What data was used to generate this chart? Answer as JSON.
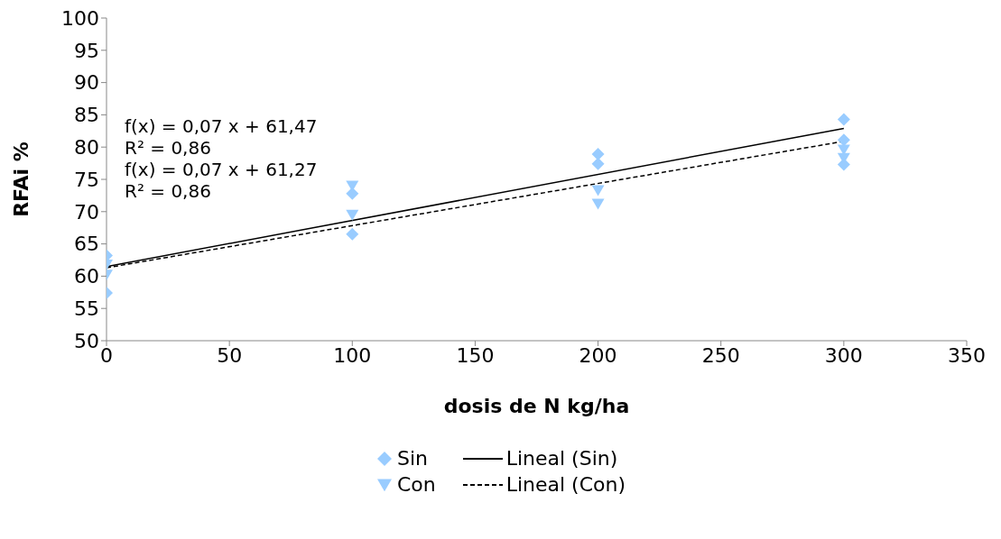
{
  "chart_data": {
    "type": "scatter",
    "xlabel": "dosis de N kg/ha",
    "ylabel": "RFAi %",
    "xlim": [
      0,
      350
    ],
    "xticks": [
      0,
      50,
      100,
      150,
      200,
      250,
      300,
      350
    ],
    "ylim": [
      50,
      100
    ],
    "yticks": [
      50,
      55,
      60,
      65,
      70,
      75,
      80,
      85,
      90,
      95,
      100
    ],
    "grid": false,
    "legend": "bottom",
    "series": [
      {
        "name": "Sin",
        "type": "scatter",
        "marker": "diamond",
        "color": "#99ccff",
        "x": [
          0,
          0,
          100,
          100,
          200,
          200,
          300,
          300,
          300
        ],
        "values": [
          63.2,
          57.4,
          72.8,
          66.5,
          78.9,
          77.4,
          84.3,
          81.1,
          77.3
        ]
      },
      {
        "name": "Lineal (Sin)",
        "type": "line",
        "marker": "none",
        "line_style": "solid",
        "color": "#000000",
        "x": [
          0,
          300
        ],
        "values": [
          61.5,
          82.9
        ]
      },
      {
        "name": "Con",
        "type": "scatter",
        "marker": "triangle",
        "color": "#99ccff",
        "x": [
          0,
          0,
          100,
          100,
          200,
          200,
          300,
          300
        ],
        "values": [
          61.8,
          60.2,
          74.0,
          69.5,
          73.3,
          71.2,
          79.6,
          78.3
        ]
      },
      {
        "name": "Lineal (Con)",
        "type": "line",
        "marker": "none",
        "line_style": "dashed",
        "color": "#000000",
        "x": [
          0,
          300
        ],
        "values": [
          61.3,
          80.9
        ]
      }
    ],
    "annotations": [
      "f(x) = 0,07 x + 61,47",
      "R² = 0,86",
      "f(x) = 0,07 x + 61,27",
      "R² = 0,86"
    ]
  }
}
